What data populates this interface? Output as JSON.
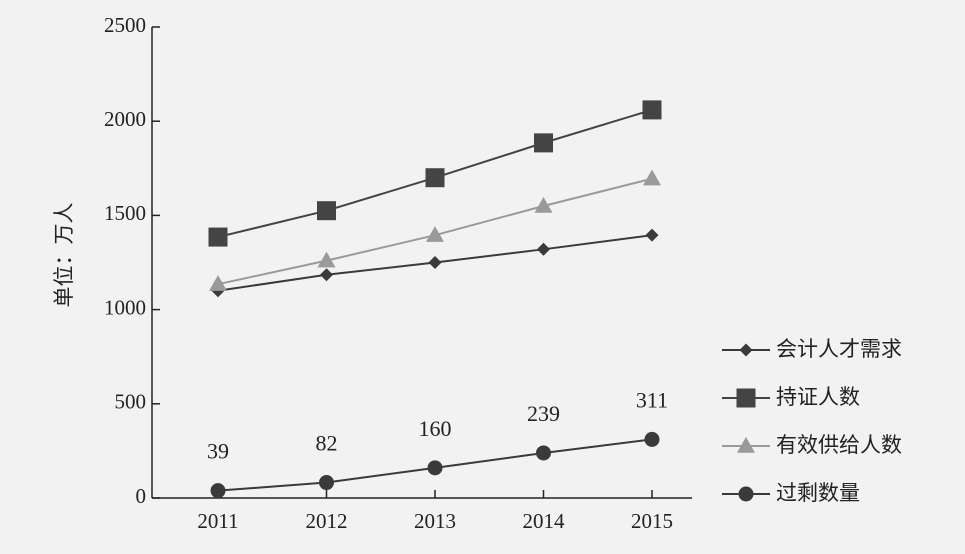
{
  "chart_data": {
    "type": "line",
    "ylabel": "单位：万人",
    "xlabel": "",
    "title": "",
    "categories": [
      "2011",
      "2012",
      "2013",
      "2014",
      "2015"
    ],
    "ylim": [
      0,
      2500
    ],
    "yticks": [
      "0",
      "500",
      "1000",
      "1500",
      "2000",
      "2500"
    ],
    "grid": false,
    "legend_position": "right",
    "series": [
      {
        "name": "会计人才需求",
        "marker": "diamond",
        "color": "#3a3a3a",
        "values": [
          1100,
          1185,
          1250,
          1320,
          1395
        ]
      },
      {
        "name": "持证人数",
        "marker": "square",
        "color": "#444444",
        "values": [
          1385,
          1525,
          1700,
          1885,
          2060
        ]
      },
      {
        "name": "有效供给人数",
        "marker": "triangle",
        "color": "#9a9a9a",
        "values": [
          1135,
          1260,
          1395,
          1550,
          1695
        ]
      },
      {
        "name": "过剩数量",
        "marker": "circle",
        "color": "#3a3a3a",
        "values": [
          39,
          82,
          160,
          239,
          311
        ],
        "data_labels": [
          "39",
          "82",
          "160",
          "239",
          "311"
        ]
      }
    ]
  }
}
